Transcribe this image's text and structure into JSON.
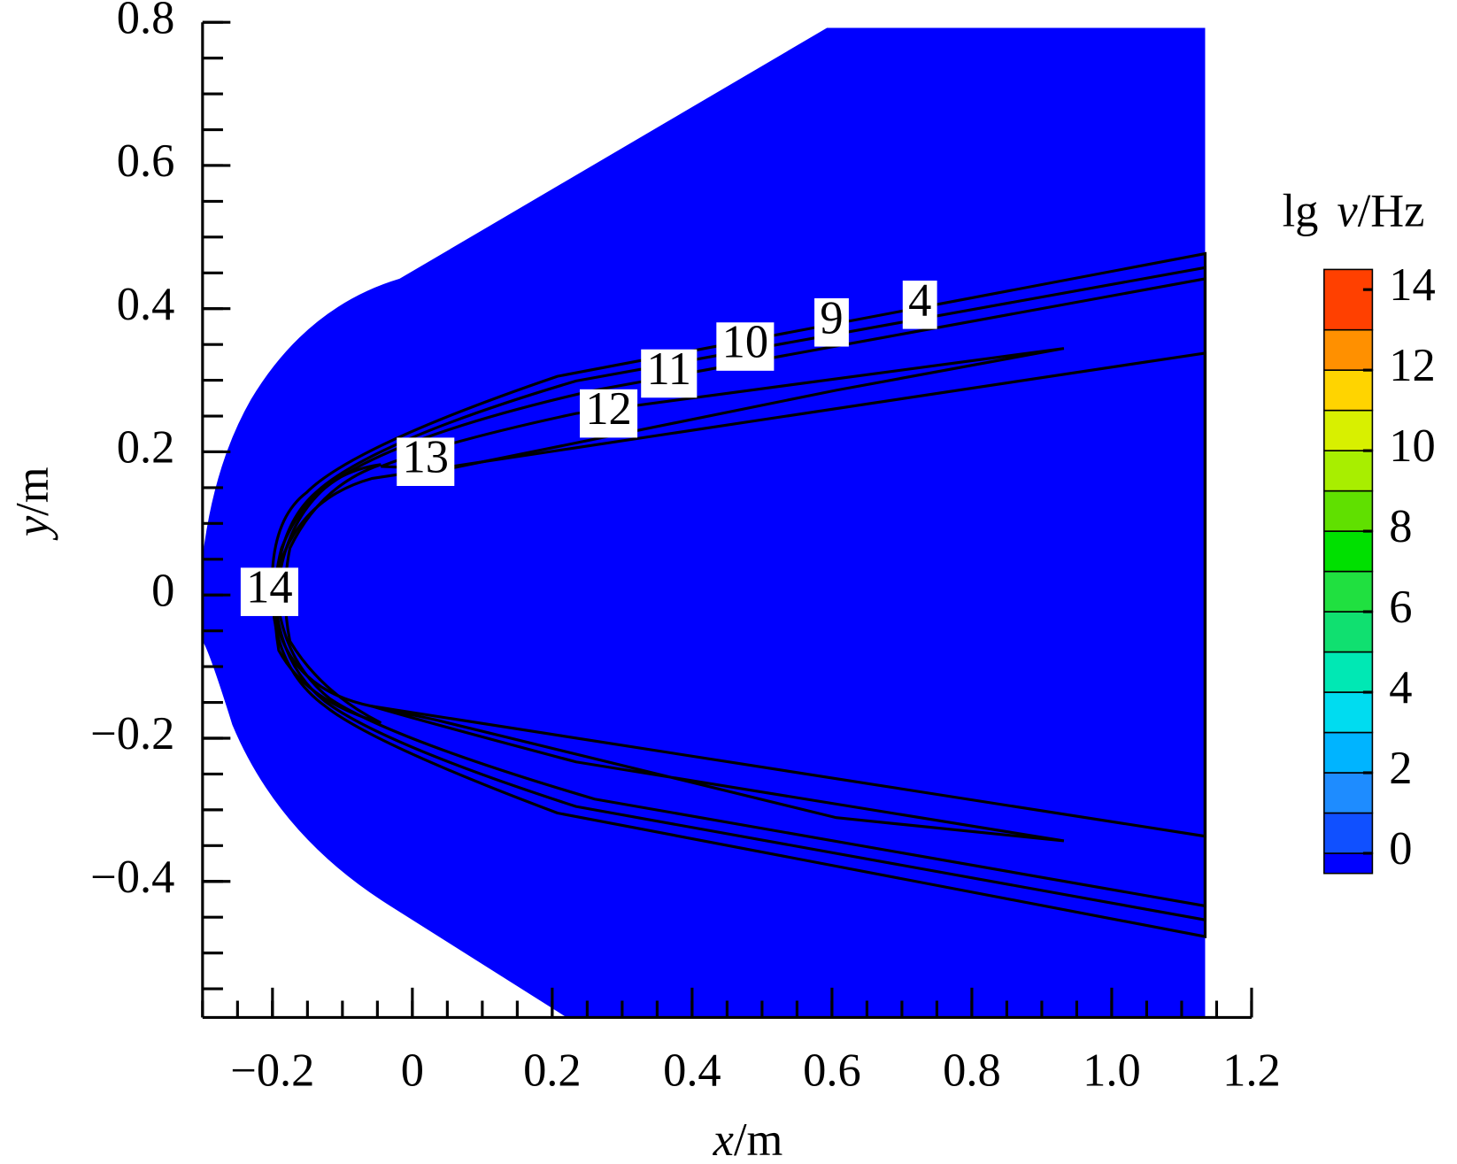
{
  "chart_data": {
    "type": "contour",
    "x_label": {
      "symbol": "x",
      "unit": "/m"
    },
    "y_label": {
      "symbol": "y",
      "unit": "/m"
    },
    "xlim": [
      -0.3,
      1.2
    ],
    "xticks": [
      {
        "value": -0.2,
        "label": "−0.2"
      },
      0,
      0.2,
      0.4,
      0.6,
      0.8,
      {
        "value": 1,
        "label": "1.0"
      },
      1.2
    ],
    "x_minor_divisions": 4,
    "ylim": [
      -0.59,
      0.8
    ],
    "yticks": [
      {
        "value": -0.4,
        "label": "−0.4"
      },
      {
        "value": -0.2,
        "label": "−0.2"
      },
      0,
      0.2,
      0.4,
      0.6,
      0.8
    ],
    "y_minor_divisions": 4,
    "colorbar": {
      "label": {
        "prefix": "lg",
        "symbol": "ν",
        "unit": "/Hz"
      },
      "levels": [
        -0.5,
        0,
        1,
        2,
        3,
        4,
        5,
        6,
        7,
        8,
        9,
        10,
        11,
        12,
        13,
        14.5
      ],
      "colors": [
        "#0000ff",
        "#1050ff",
        "#1e8cff",
        "#00b4ff",
        "#00dcf0",
        "#00e8b4",
        "#10e070",
        "#20e040",
        "#00e000",
        "#60e000",
        "#a8ee00",
        "#d8f000",
        "#ffd400",
        "#ff9000",
        "#ff4000"
      ],
      "ticks": [
        0,
        2,
        4,
        6,
        8,
        10,
        12,
        14
      ]
    },
    "contour_labels": [
      14,
      13,
      12,
      11,
      10,
      9,
      4
    ]
  }
}
